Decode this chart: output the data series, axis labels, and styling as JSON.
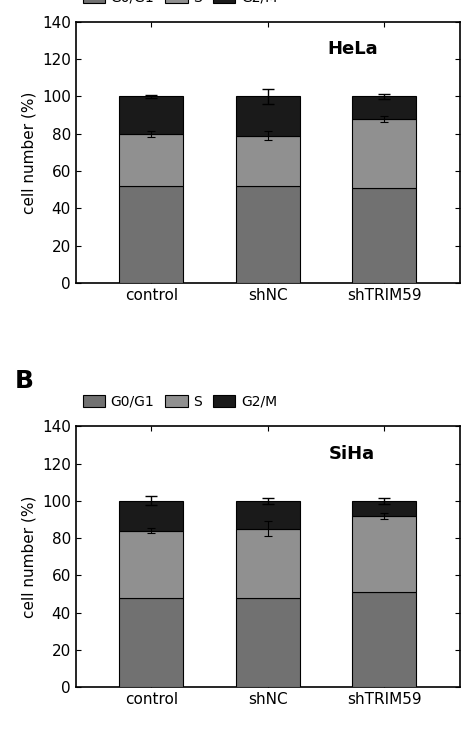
{
  "panel_A": {
    "title": "HeLa",
    "categories": [
      "control",
      "shNC",
      "shTRIM59"
    ],
    "G0G1": [
      52,
      52,
      51
    ],
    "S": [
      28,
      27,
      37
    ],
    "G2M": [
      20,
      21,
      12
    ],
    "error_total": [
      1.0,
      4.0,
      1.2
    ],
    "error_S": [
      1.5,
      2.5,
      1.5
    ]
  },
  "panel_B": {
    "title": "SiHa",
    "categories": [
      "control",
      "shNC",
      "shTRIM59"
    ],
    "G0G1": [
      48,
      48,
      51
    ],
    "S": [
      36,
      37,
      41
    ],
    "G2M": [
      16,
      15,
      8
    ],
    "error_total": [
      2.5,
      1.5,
      1.5
    ],
    "error_S": [
      1.5,
      4.0,
      1.5
    ]
  },
  "color_G0G1": "#717171",
  "color_S": "#909090",
  "color_G2M": "#1a1a1a",
  "ylabel": "cell number (%)",
  "ylim": [
    0,
    140
  ],
  "yticks": [
    0,
    20,
    40,
    60,
    80,
    100,
    120,
    140
  ],
  "bar_width": 0.55,
  "legend_labels": [
    "G0/G1",
    "S",
    "G2/M"
  ],
  "legend_colors": [
    "#717171",
    "#909090",
    "#1a1a1a"
  ]
}
